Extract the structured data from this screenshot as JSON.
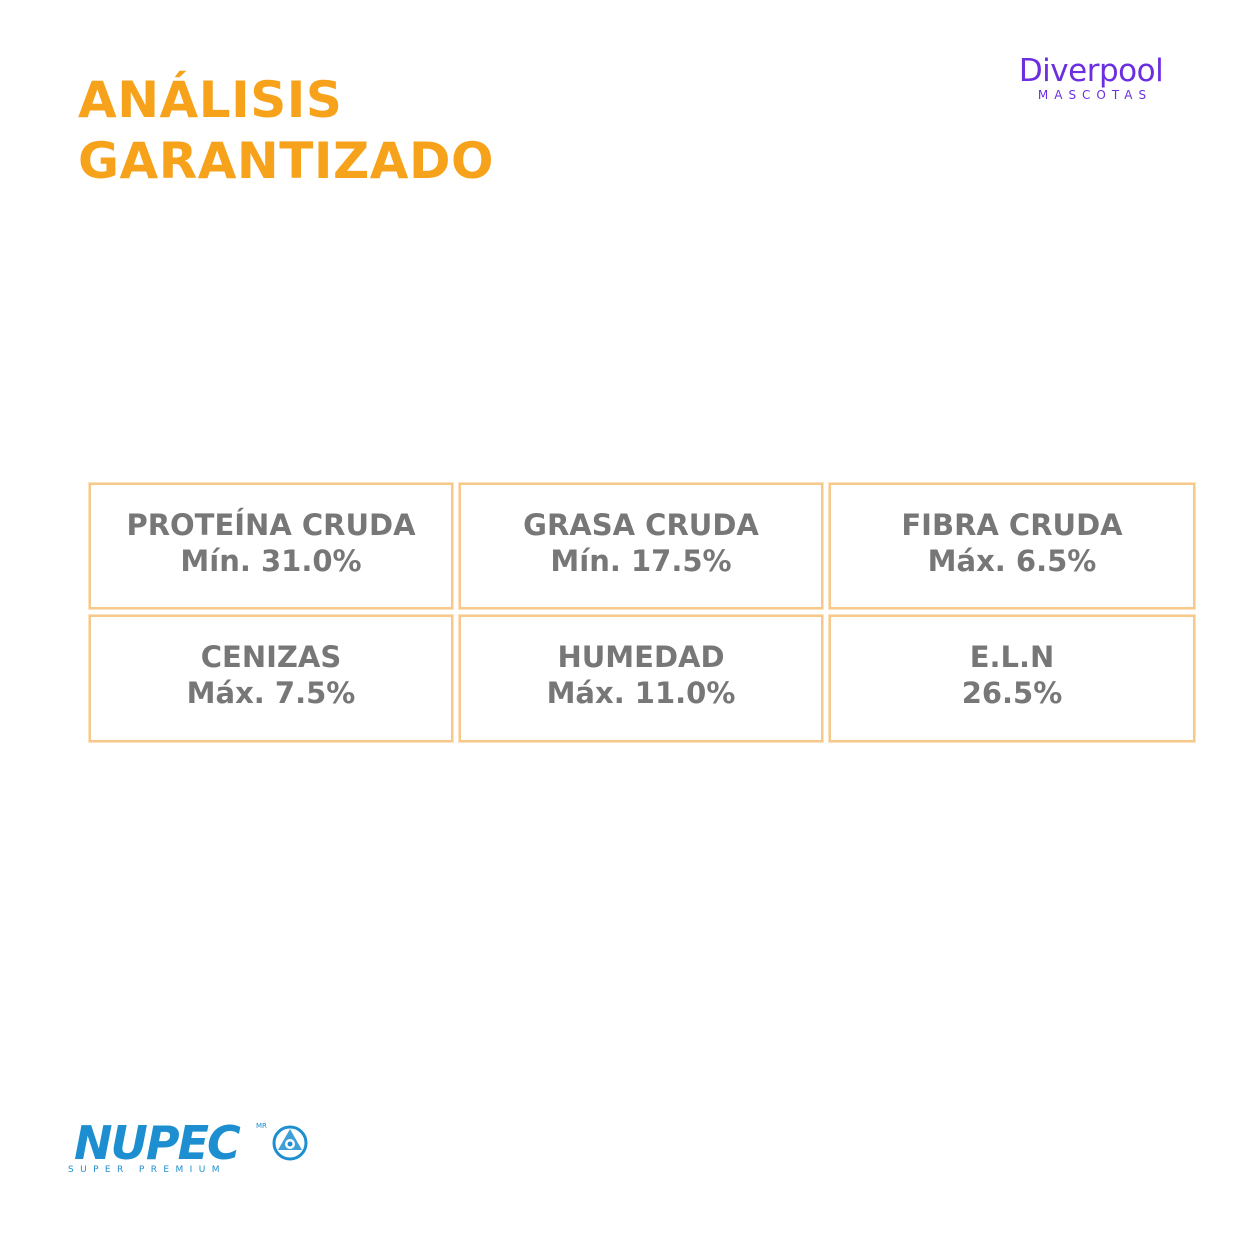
{
  "header": {
    "title_line1": "ANÁLISIS",
    "title_line2": "GARANTIZADO",
    "accent_color": "#f7a21b"
  },
  "brand": {
    "name": "Diverpool",
    "sub": "MASCOTAS",
    "color": "#6b2fe0"
  },
  "analysis": {
    "border_color": "#f6c98a",
    "text_color": "#777777",
    "cells": [
      {
        "label": "PROTEÍNA CRUDA",
        "value": "Mín. 31.0%"
      },
      {
        "label": "GRASA CRUDA",
        "value": "Mín. 17.5%"
      },
      {
        "label": "FIBRA CRUDA",
        "value": "Máx. 6.5%"
      },
      {
        "label": "CENIZAS",
        "value": "Máx. 7.5%"
      },
      {
        "label": "HUMEDAD",
        "value": "Máx. 11.0%"
      },
      {
        "label": "E.L.N",
        "value": "26.5%"
      }
    ]
  },
  "footer_logo": {
    "name": "NUPEC",
    "mark": "MR",
    "tagline": "SUPER PREMIUM",
    "color": "#1d8fd0",
    "emblem_icon": "nupec-emblem-icon"
  }
}
